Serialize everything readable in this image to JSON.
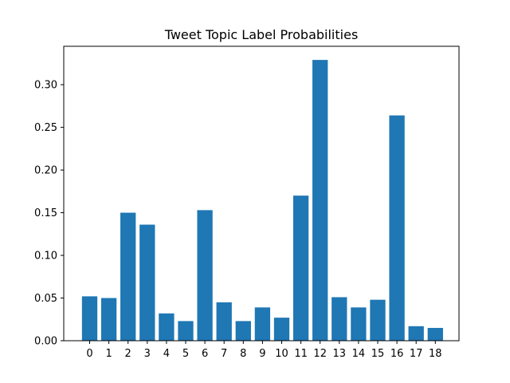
{
  "chart_data": {
    "type": "bar",
    "title": "Tweet Topic Label Probabilities",
    "xlabel": "",
    "ylabel": "",
    "categories": [
      "0",
      "1",
      "2",
      "3",
      "4",
      "5",
      "6",
      "7",
      "8",
      "9",
      "10",
      "11",
      "12",
      "13",
      "14",
      "15",
      "16",
      "17",
      "18"
    ],
    "values": [
      0.052,
      0.05,
      0.15,
      0.136,
      0.032,
      0.023,
      0.153,
      0.045,
      0.023,
      0.039,
      0.027,
      0.17,
      0.329,
      0.051,
      0.039,
      0.048,
      0.264,
      0.017,
      0.015
    ],
    "ylim": [
      0,
      0.345
    ],
    "yticks": [
      0.0,
      0.05,
      0.1,
      0.15,
      0.2,
      0.25,
      0.3
    ],
    "ytick_labels": [
      "0.00",
      "0.05",
      "0.10",
      "0.15",
      "0.20",
      "0.25",
      "0.30"
    ],
    "grid": false,
    "legend": "none",
    "colors": {
      "bar": "#1f77b4",
      "axis": "#000000",
      "background": "#ffffff"
    }
  }
}
